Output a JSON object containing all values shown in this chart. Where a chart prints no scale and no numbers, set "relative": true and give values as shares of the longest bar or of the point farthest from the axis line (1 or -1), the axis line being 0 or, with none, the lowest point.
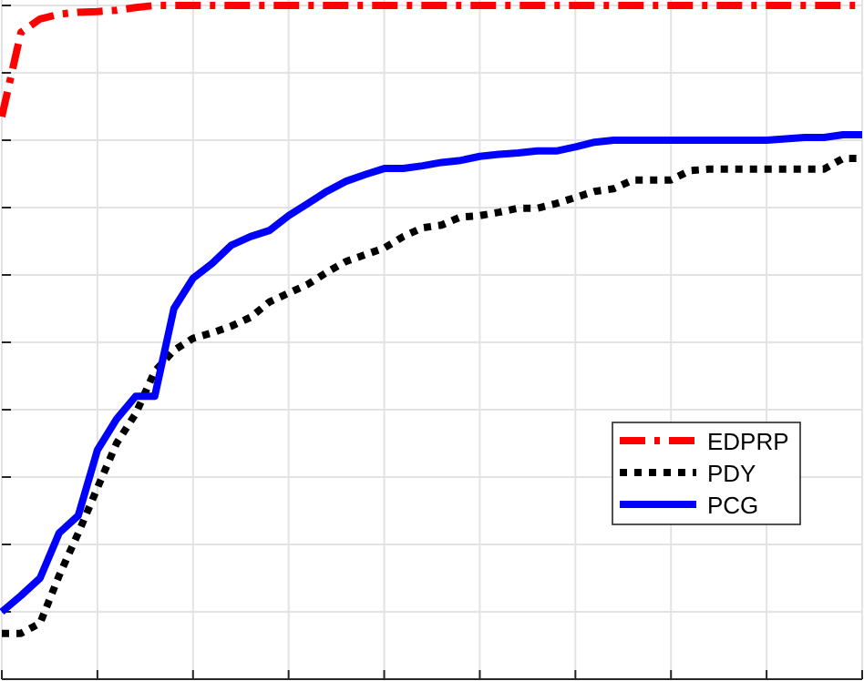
{
  "chart_data": {
    "type": "line",
    "relative": true,
    "grid": true,
    "legend": "right",
    "categories": [
      null,
      null,
      null,
      null,
      null,
      null,
      null,
      null,
      null,
      null,
      null,
      null,
      null,
      null,
      null,
      null,
      null,
      null,
      null,
      null,
      null,
      null,
      null,
      null,
      null,
      null,
      null,
      null,
      null,
      null,
      null,
      null,
      null,
      null,
      null,
      null,
      null,
      null,
      null,
      null,
      null,
      null,
      null,
      null,
      null,
      null
    ],
    "series": [
      {
        "name": "EDPRP",
        "color": "#ff0000",
        "line_style": "dashed",
        "values": [
          0.835,
          0.96,
          0.98,
          0.987,
          0.99,
          0.991,
          0.993,
          0.997,
          1,
          1,
          1,
          1,
          1,
          1,
          1,
          1,
          1,
          1,
          1,
          1,
          1,
          1,
          1,
          1,
          1,
          1,
          1,
          1,
          1,
          1,
          1,
          1,
          1,
          1,
          1,
          1,
          1,
          1,
          1,
          1,
          1,
          1,
          1,
          1,
          1,
          1
        ]
      },
      {
        "name": "PDY",
        "color": "#000000",
        "line_style": "dotted",
        "values": [
          0.068,
          0.068,
          0.083,
          0.154,
          0.217,
          0.284,
          0.35,
          0.394,
          0.457,
          0.488,
          0.506,
          0.514,
          0.524,
          0.537,
          0.56,
          0.573,
          0.586,
          0.604,
          0.62,
          0.63,
          0.64,
          0.657,
          0.67,
          0.674,
          0.686,
          0.688,
          0.693,
          0.699,
          0.699,
          0.706,
          0.715,
          0.724,
          0.728,
          0.741,
          0.741,
          0.741,
          0.755,
          0.757,
          0.757,
          0.757,
          0.757,
          0.757,
          0.757,
          0.757,
          0.773,
          0.773
        ]
      },
      {
        "name": "PCG",
        "color": "#0000ff",
        "line_style": "solid",
        "values": [
          0.1,
          0.124,
          0.15,
          0.217,
          0.243,
          0.34,
          0.386,
          0.42,
          0.42,
          0.55,
          0.595,
          0.617,
          0.644,
          0.657,
          0.666,
          0.688,
          0.706,
          0.724,
          0.739,
          0.749,
          0.758,
          0.758,
          0.762,
          0.767,
          0.77,
          0.776,
          0.779,
          0.781,
          0.784,
          0.784,
          0.79,
          0.797,
          0.8,
          0.8,
          0.8,
          0.8,
          0.8,
          0.8,
          0.8,
          0.8,
          0.8,
          0.802,
          0.804,
          0.804,
          0.808,
          0.808
        ]
      }
    ]
  }
}
